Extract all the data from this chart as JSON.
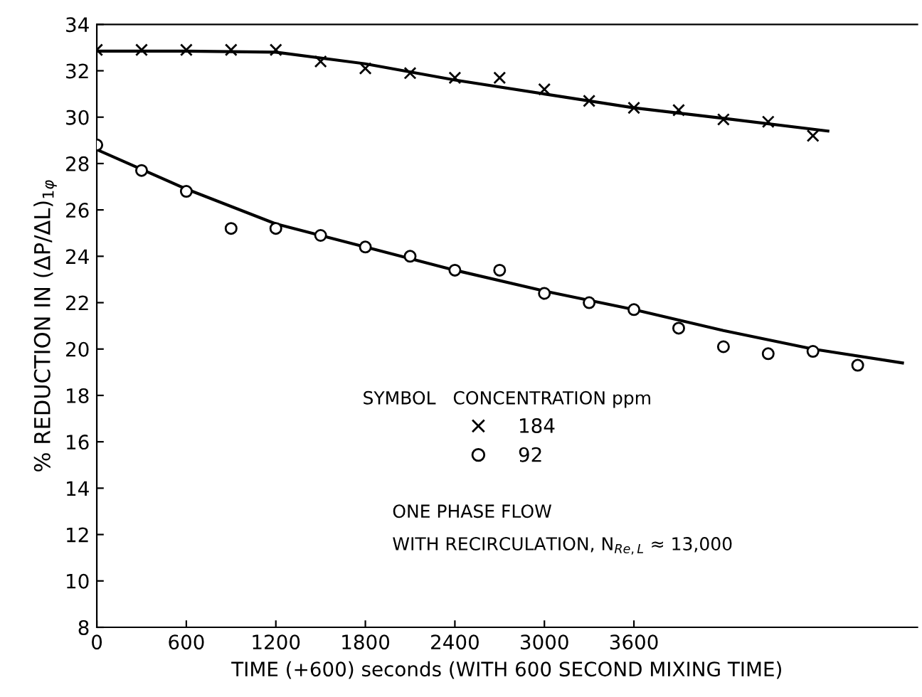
{
  "chart_data": {
    "type": "scatter",
    "xlabel": "TIME (+600) seconds (WITH 600 SECOND MIXING TIME)",
    "ylabel": "% REDUCTION IN (ΔP/ΔL)$_{1φ}$",
    "legend_title": "SYMBOL   CONCENTRATION ppm",
    "annotations": [
      "ONE PHASE FLOW",
      "WITH RECIRCULATION, N$_{Re,L}$ ≈ 13,000"
    ],
    "series": [
      {
        "name": "184",
        "marker": "cross",
        "color": "#000000",
        "x": [
          0,
          300,
          600,
          900,
          1200,
          1500,
          1800,
          2100,
          2400,
          2700,
          3000,
          3300,
          3600,
          3900,
          4200,
          4500,
          4800
        ],
        "values": [
          32.9,
          32.9,
          32.9,
          32.9,
          32.9,
          32.4,
          32.1,
          31.9,
          31.7,
          31.7,
          31.2,
          30.7,
          30.4,
          30.3,
          29.9,
          29.8,
          29.2
        ]
      },
      {
        "name": "92",
        "marker": "circle",
        "color": "#000000",
        "x": [
          0,
          300,
          600,
          900,
          1200,
          1500,
          1800,
          2100,
          2400,
          2700,
          3000,
          3300,
          3600,
          3900,
          4200,
          4500,
          4800,
          5100
        ],
        "values": [
          28.8,
          27.7,
          26.8,
          25.2,
          25.2,
          24.9,
          24.4,
          24.0,
          23.4,
          23.4,
          22.4,
          22.0,
          21.7,
          20.9,
          20.1,
          19.8,
          19.9,
          19.3
        ]
      },
      {
        "type": "line",
        "color": "#000000",
        "x": [
          0,
          600,
          1200,
          1800,
          2400,
          3000,
          3600,
          4200,
          4900
        ],
        "values": [
          32.85,
          32.85,
          32.8,
          32.3,
          31.6,
          31.0,
          30.4,
          29.95,
          29.4
        ]
      },
      {
        "type": "line",
        "color": "#000000",
        "x": [
          0,
          600,
          1200,
          1800,
          2400,
          3000,
          3600,
          4200,
          4800,
          5400
        ],
        "values": [
          28.6,
          26.9,
          25.4,
          24.4,
          23.4,
          22.5,
          21.7,
          20.8,
          20.0,
          19.4
        ]
      }
    ],
    "xlim": [
      0,
      5500
    ],
    "xticks": [
      0,
      600,
      1200,
      1800,
      2400,
      3000,
      3600
    ],
    "ylim": [
      8,
      34
    ],
    "yticks": [
      8,
      10,
      12,
      14,
      16,
      18,
      20,
      22,
      24,
      26,
      28,
      30,
      32,
      34
    ],
    "grid": false,
    "legend": "bottom"
  }
}
